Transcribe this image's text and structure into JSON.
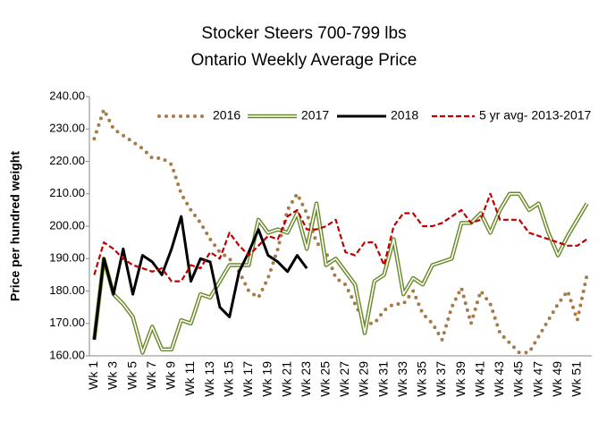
{
  "chart_data": {
    "type": "line",
    "title": "Stocker Steers 700-799 lbs",
    "subtitle": "Ontario Weekly Average Price",
    "y_label": "Price per hundred weight",
    "categories": [
      "Wk 1",
      null,
      "Wk 3",
      null,
      "Wk 5",
      null,
      "Wk 7",
      null,
      "Wk 9",
      null,
      "Wk 11",
      null,
      "Wk 13",
      null,
      "Wk 15",
      null,
      "Wk 17",
      null,
      "Wk 19",
      null,
      "Wk 21",
      null,
      "Wk 23",
      null,
      "Wk 25",
      null,
      "Wk 27",
      null,
      "Wk 29",
      null,
      "Wk 31",
      null,
      "Wk 33",
      null,
      "Wk 35",
      null,
      "Wk 37",
      null,
      "Wk 39",
      null,
      "Wk 41",
      null,
      "Wk 43",
      null,
      "Wk 45",
      null,
      "Wk 47",
      null,
      "Wk 49",
      null,
      "Wk 51",
      null
    ],
    "series": [
      {
        "name": "2016",
        "color": "#a87a4a",
        "style": "dotted",
        "values": [
          227,
          236,
          230,
          228,
          226,
          224,
          221,
          221,
          219,
          210,
          205,
          201,
          196,
          192,
          190,
          186,
          180,
          178,
          184,
          193,
          205,
          210,
          204,
          195,
          192,
          184,
          182,
          176,
          170,
          170,
          174,
          176,
          176,
          180,
          173,
          170,
          165,
          175,
          181,
          170,
          180,
          176,
          167,
          164,
          161,
          161,
          166,
          171,
          176,
          180,
          171,
          185
        ]
      },
      {
        "name": "2017",
        "color": "#6b8a2a",
        "style": "double",
        "values": [
          165,
          190,
          179,
          176,
          172,
          161,
          169,
          162,
          162,
          171,
          170,
          179,
          178,
          183,
          188,
          188,
          188,
          202,
          198,
          199,
          198,
          204,
          193,
          207,
          188,
          190,
          186,
          182,
          167,
          183,
          185,
          196,
          179,
          184,
          182,
          188,
          189,
          190,
          201,
          201,
          204,
          198,
          205,
          210,
          210,
          205,
          207,
          198,
          191,
          197,
          202,
          207
        ]
      },
      {
        "name": "2018",
        "color": "#000000",
        "style": "solid",
        "values": [
          165,
          190,
          179,
          193,
          179,
          191,
          189,
          185,
          193,
          203,
          183,
          190,
          189,
          175,
          172,
          186,
          192,
          199,
          191,
          189,
          186,
          191,
          187,
          null,
          null,
          null,
          null,
          null,
          null,
          null,
          null,
          null,
          null,
          null,
          null,
          null,
          null,
          null,
          null,
          null,
          null,
          null,
          null,
          null,
          null,
          null,
          null,
          null,
          null,
          null,
          null,
          null
        ]
      },
      {
        "name": "5 yr avg- 2013-2017",
        "color": "#c00000",
        "style": "dashed",
        "values": [
          185,
          195,
          193,
          190,
          188,
          187,
          186,
          187,
          183,
          183,
          188,
          187,
          192,
          190,
          198,
          194,
          191,
          194,
          197,
          196,
          203,
          205,
          199,
          199,
          200,
          202,
          192,
          191,
          195,
          195,
          188,
          200,
          204,
          204,
          200,
          200,
          201,
          203,
          205,
          201,
          202,
          210,
          202,
          202,
          202,
          198,
          197,
          196,
          195,
          194,
          194,
          196
        ]
      }
    ],
    "ylim": [
      160,
      240
    ],
    "yticks": [
      {
        "value": 160,
        "label": "160.00"
      },
      {
        "value": 170,
        "label": "170.00"
      },
      {
        "value": 180,
        "label": "180.00"
      },
      {
        "value": 190,
        "label": "190.00"
      },
      {
        "value": 200,
        "label": "200.00"
      },
      {
        "value": 210,
        "label": "210.00"
      },
      {
        "value": 220,
        "label": "220.00"
      },
      {
        "value": 230,
        "label": "230.00"
      },
      {
        "value": 240,
        "label": "240.00"
      }
    ],
    "grid": false,
    "legend": "top"
  }
}
